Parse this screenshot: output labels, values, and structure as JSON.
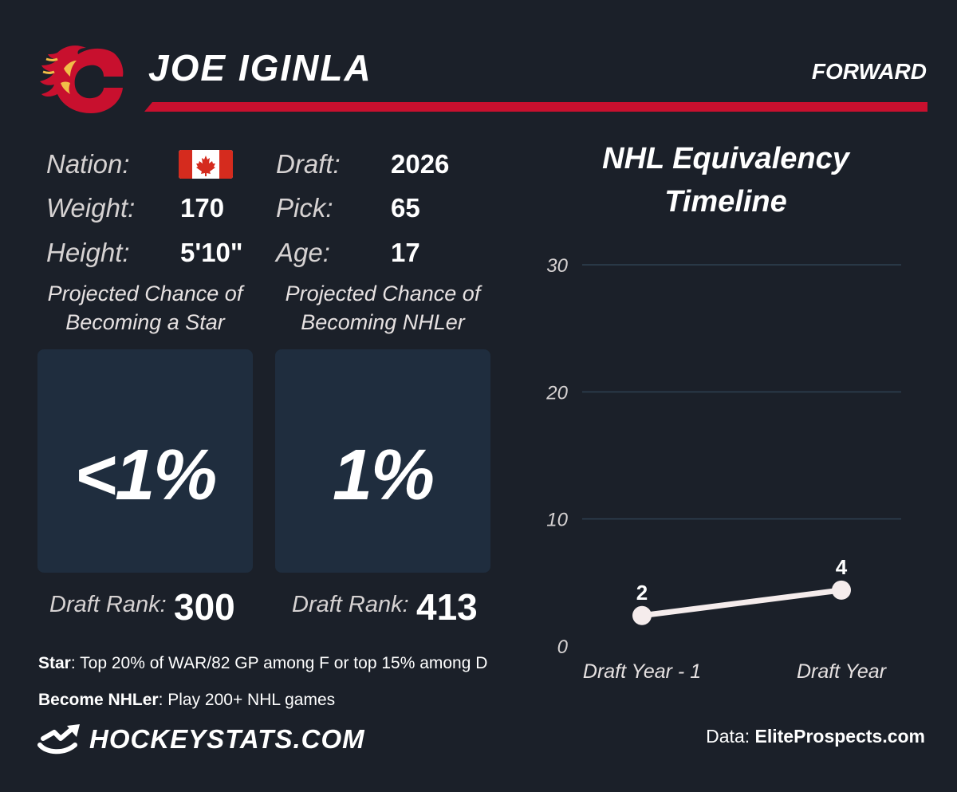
{
  "player": {
    "name": "JOE IGINLA",
    "position": "FORWARD",
    "team_logo": "calgary-flames-logo",
    "team_colors": {
      "red": "#c8102e",
      "yellow": "#f1be48"
    }
  },
  "bio": {
    "nation_label": "Nation:",
    "nation_flag": "canada-flag",
    "weight_label": "Weight:",
    "weight": "170",
    "height_label": "Height:",
    "height": "5'10\"",
    "draft_label": "Draft:",
    "draft": "2026",
    "pick_label": "Pick:",
    "pick": "65",
    "age_label": "Age:",
    "age": "17"
  },
  "projections": {
    "star": {
      "title_line1": "Projected Chance of",
      "title_line2": "Becoming a Star",
      "value": "<1%",
      "rank_label": "Draft Rank:",
      "rank": "300"
    },
    "nhler": {
      "title_line1": "Projected Chance of",
      "title_line2": "Becoming NHLer",
      "value": "1%",
      "rank_label": "Draft Rank:",
      "rank": "413"
    }
  },
  "footnotes": {
    "star_term": "Star",
    "star_def": ": Top 20% of WAR/82 GP among F or top 15% among D",
    "nhler_term": "Become NHLer",
    "nhler_def": ": Play 200+ NHL games"
  },
  "branding": {
    "site": "HOCKEYSTATS.COM",
    "site_icon": "hockeystats-logo-icon",
    "credit_prefix": "Data: ",
    "credit_source": "EliteProspects.com"
  },
  "colors": {
    "background": "#1b2029",
    "panel": "#1f2d3e",
    "accent_red": "#c8102e",
    "line": "#f5ecec",
    "grid": "#2e4050"
  },
  "chart_data": {
    "type": "line",
    "title_line1": "NHL Equivalency",
    "title_line2": "Timeline",
    "categories": [
      "Draft Year - 1",
      "Draft Year"
    ],
    "series": [
      {
        "values": [
          2.4,
          4.4
        ],
        "labels": [
          "2",
          "4"
        ]
      }
    ],
    "yticks": [
      0,
      10,
      20,
      30
    ],
    "ylim": [
      0,
      30
    ],
    "grid": true
  }
}
